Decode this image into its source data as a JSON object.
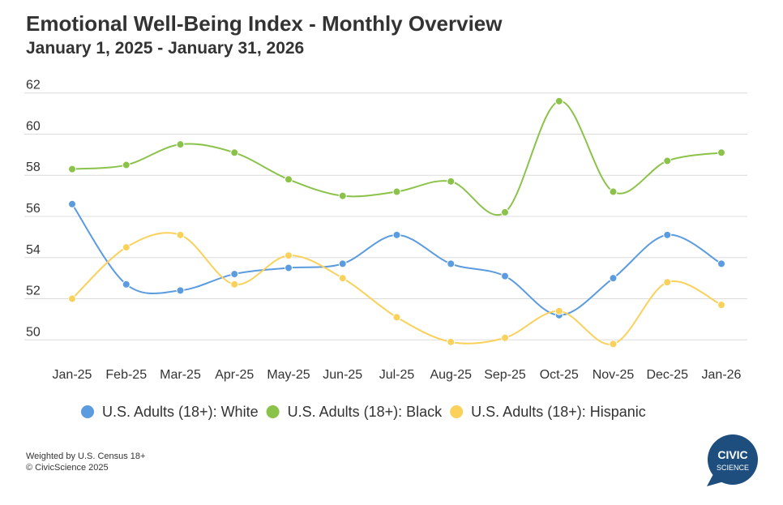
{
  "chart_data": {
    "type": "line",
    "title": "Emotional Well-Being Index - Monthly Overview",
    "subtitle": "January 1, 2025 - January 31, 2026",
    "categories": [
      "Jan-25",
      "Feb-25",
      "Mar-25",
      "Apr-25",
      "May-25",
      "Jun-25",
      "Jul-25",
      "Aug-25",
      "Sep-25",
      "Oct-25",
      "Nov-25",
      "Dec-25",
      "Jan-26"
    ],
    "series": [
      {
        "name": "U.S. Adults (18+): White",
        "color": "#5b9be0",
        "values": [
          56.6,
          52.7,
          52.4,
          53.2,
          53.5,
          53.7,
          55.1,
          53.7,
          53.1,
          51.2,
          53.0,
          55.1,
          53.7
        ]
      },
      {
        "name": "U.S. Adults (18+): Black",
        "color": "#8bc34a",
        "values": [
          58.3,
          58.5,
          59.5,
          59.1,
          57.8,
          57.0,
          57.2,
          57.7,
          56.2,
          61.6,
          57.2,
          58.7,
          59.1
        ]
      },
      {
        "name": "U.S. Adults (18+): Hispanic",
        "color": "#f9d15b",
        "values": [
          52.0,
          54.5,
          55.1,
          52.7,
          54.1,
          53.0,
          51.1,
          49.9,
          50.1,
          51.4,
          49.8,
          52.8,
          51.7
        ]
      }
    ],
    "ylim": [
      49.5,
      62.5
    ],
    "yticks": [
      50,
      52,
      54,
      56,
      58,
      60,
      62
    ],
    "grid": true,
    "legend": "bottom",
    "notes": [
      "Weighted by U.S. Census 18+",
      "© CivicScience 2025"
    ],
    "logo": [
      "CIVIC",
      "SCIENCE"
    ]
  }
}
